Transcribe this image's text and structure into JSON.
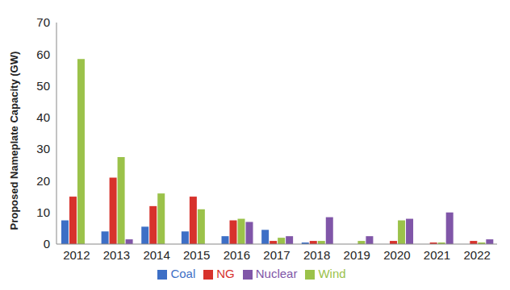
{
  "chart_data": {
    "type": "bar",
    "y_label": "Proposed Nameplate Capacity (GW)",
    "categories": [
      "2012",
      "2013",
      "2014",
      "2015",
      "2016",
      "2017",
      "2018",
      "2019",
      "2020",
      "2021",
      "2022"
    ],
    "series": [
      {
        "name": "Coal",
        "color": "#3d6fc6",
        "values": [
          7.5,
          4,
          5.5,
          4,
          2.5,
          4.5,
          0.5,
          0,
          0,
          0,
          0
        ]
      },
      {
        "name": "NG",
        "color": "#d7322c",
        "values": [
          15,
          21,
          12,
          15,
          7.5,
          1,
          1,
          0,
          1,
          0.5,
          1
        ]
      },
      {
        "name": "Wind",
        "color": "#9bc24a",
        "values": [
          58.5,
          27.5,
          16,
          11,
          8,
          2,
          1,
          1,
          7.5,
          0.5,
          0.5
        ]
      },
      {
        "name": "Nuclear",
        "color": "#8056a8",
        "values": [
          0,
          1.5,
          0,
          0,
          7,
          2.5,
          8.5,
          2.5,
          8,
          10,
          1.5
        ]
      }
    ],
    "ylim": [
      0,
      70
    ],
    "yticks": [
      0,
      10,
      20,
      30,
      40,
      50,
      60,
      70
    ],
    "grid": false,
    "legend": "bottom"
  }
}
